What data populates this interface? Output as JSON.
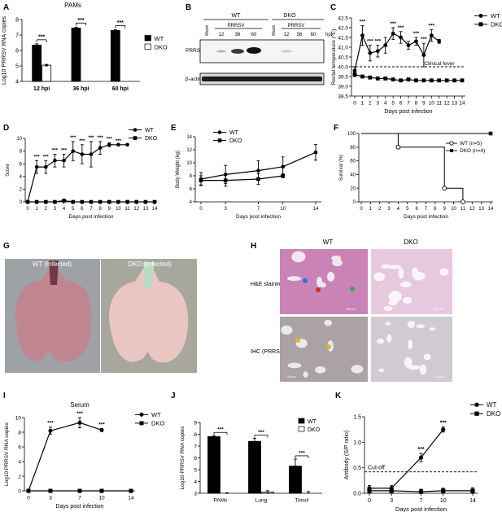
{
  "panel_letters": {
    "a": "A",
    "b": "B",
    "c": "C",
    "d": "D",
    "e": "E",
    "f": "F",
    "g": "G",
    "h": "H",
    "i": "I",
    "j": "J",
    "k": "K"
  },
  "sig": "***",
  "colors": {
    "wt": "#000000",
    "dko_fill": "#ffffff",
    "grid_line": "#000000"
  },
  "chart_data": [
    {
      "id": "A",
      "type": "bar",
      "title": "PAMs",
      "categories": [
        "12 hpi",
        "36 hpi",
        "60 hpi"
      ],
      "ylabel": "Log10 PRRSV RNA copies",
      "ylim": [
        4,
        8
      ],
      "yticks": [
        4,
        5,
        6,
        7,
        8
      ],
      "series": [
        {
          "name": "WT",
          "values": [
            6.35,
            7.45,
            7.3
          ],
          "err": [
            0.08,
            0.06,
            0.04
          ]
        },
        {
          "name": "DKO",
          "values": [
            5.05,
            null,
            null
          ],
          "err": [
            0.05,
            null,
            null
          ]
        }
      ],
      "significance": [
        "***",
        "***",
        "***"
      ],
      "legend": "top-right"
    },
    {
      "id": "C",
      "type": "line",
      "x": [
        0,
        1,
        2,
        3,
        4,
        5,
        6,
        7,
        8,
        9,
        10,
        11,
        12,
        13,
        14
      ],
      "xticks": [
        0,
        1,
        2,
        3,
        4,
        5,
        6,
        7,
        8,
        9,
        10,
        11,
        12,
        13,
        14
      ],
      "xlabel": "Days post infection",
      "ylabel": "Rectal temperature (℃)",
      "ylim": [
        38.5,
        42.5
      ],
      "yticks": [
        38.5,
        39.0,
        39.5,
        40.0,
        40.5,
        41.0,
        41.5,
        42.0,
        42.5
      ],
      "ytick_labels": [
        "38.5",
        "39.0",
        "39.5",
        "40.0",
        "40.5",
        "41.0",
        "41.5",
        "42.0",
        "42.5"
      ],
      "series": [
        {
          "name": "WT",
          "x": [
            0,
            1,
            2,
            3,
            4,
            5,
            6,
            7,
            8,
            9,
            10,
            11
          ],
          "values": [
            39.8,
            41.6,
            40.7,
            40.8,
            41.1,
            41.7,
            41.5,
            41.1,
            41.3,
            40.6,
            41.6,
            41.3
          ],
          "err": [
            0.2,
            0.5,
            0.4,
            0.3,
            0.4,
            0.3,
            0.3,
            0.2,
            0.2,
            0.6,
            0.3,
            0.1
          ]
        },
        {
          "name": "DKO",
          "x": [
            0,
            1,
            2,
            3,
            4,
            5,
            6,
            7,
            8,
            9,
            10,
            11,
            12,
            13,
            14
          ],
          "values": [
            39.6,
            39.5,
            39.45,
            39.4,
            39.4,
            39.35,
            39.3,
            39.35,
            39.3,
            39.3,
            39.3,
            39.3,
            39.3,
            39.3,
            39.3
          ],
          "err": [
            0.1,
            0.05,
            0.05,
            0.05,
            0.05,
            0.05,
            0.05,
            0.05,
            0.05,
            0.05,
            0.05,
            0.05,
            0.05,
            0.05,
            0.05
          ]
        }
      ],
      "reference_line": {
        "y": 40.0,
        "label": "Clinical fever"
      },
      "sig_x": [
        1,
        2,
        3,
        5,
        6,
        8,
        9,
        10
      ],
      "legend": "top-right"
    },
    {
      "id": "D",
      "type": "line",
      "x": [
        0,
        1,
        2,
        3,
        4,
        5,
        6,
        7,
        8,
        9,
        10,
        11,
        12,
        13,
        14
      ],
      "xticks": [
        0,
        1,
        2,
        3,
        4,
        5,
        6,
        7,
        8,
        9,
        10,
        11,
        12,
        13,
        14
      ],
      "xlabel": "Days post infection",
      "ylabel": "Score",
      "ylim": [
        0,
        10
      ],
      "yticks": [
        0,
        2,
        4,
        6,
        8,
        10
      ],
      "series": [
        {
          "name": "WT",
          "x": [
            0,
            1,
            2,
            3,
            4,
            5,
            6,
            7,
            8,
            9,
            10,
            11
          ],
          "values": [
            0,
            5.5,
            5.5,
            6.5,
            6.5,
            8,
            7.5,
            7.5,
            8.5,
            9,
            9,
            9
          ],
          "err": [
            0,
            1,
            1,
            1,
            1,
            1.5,
            1.5,
            2,
            1,
            0.3,
            0,
            0
          ]
        },
        {
          "name": "DKO",
          "x": [
            0,
            1,
            2,
            3,
            4,
            5,
            6,
            7,
            8,
            9,
            10,
            11,
            12,
            13,
            14
          ],
          "values": [
            0,
            0,
            0,
            0,
            0.2,
            0,
            0,
            0,
            0,
            0,
            0,
            0,
            0,
            0,
            0
          ],
          "err": [
            0,
            0,
            0,
            0,
            0.2,
            0,
            0,
            0,
            0,
            0,
            0,
            0,
            0,
            0,
            0
          ]
        }
      ],
      "sig_x": [
        1,
        2,
        3,
        4,
        5,
        6,
        7,
        8,
        9,
        10
      ],
      "legend": "top-right"
    },
    {
      "id": "E",
      "type": "line",
      "xticks": [
        0,
        3,
        7,
        10,
        14
      ],
      "xlabel": "Days post infection",
      "ylabel": "Body Weight (kg)",
      "ylim": [
        4,
        14
      ],
      "yticks": [
        4,
        6,
        8,
        10,
        12,
        14
      ],
      "series": [
        {
          "name": "WT",
          "x": [
            0,
            3,
            7,
            10,
            14
          ],
          "values": [
            7.5,
            8.2,
            8.8,
            9.4,
            11.6
          ],
          "err": [
            1.0,
            1.4,
            1.5,
            1.5,
            1.2
          ]
        },
        {
          "name": "DKO",
          "x": [
            0,
            3,
            7,
            10
          ],
          "values": [
            7.3,
            7.3,
            7.5,
            8.0
          ],
          "err": [
            0.7,
            0.9,
            0.8,
            0.3
          ]
        }
      ],
      "legend": "top-left"
    },
    {
      "id": "F",
      "type": "line",
      "x": [
        0,
        1,
        2,
        3,
        4,
        5,
        6,
        7,
        8,
        9,
        10,
        11,
        12,
        13,
        14
      ],
      "xticks": [
        0,
        1,
        2,
        3,
        4,
        5,
        6,
        7,
        8,
        9,
        10,
        11,
        12,
        13,
        14
      ],
      "xlabel": "Days post infection",
      "ylabel": "Survival (%)",
      "ylim": [
        0,
        100
      ],
      "yticks": [
        0,
        20,
        40,
        60,
        80,
        100
      ],
      "series": [
        {
          "name": "WT (n=5)",
          "steps": [
            [
              0,
              100
            ],
            [
              4,
              100
            ],
            [
              4,
              80
            ],
            [
              9,
              80
            ],
            [
              9,
              20
            ],
            [
              11,
              20
            ],
            [
              11,
              0
            ]
          ],
          "markers": [
            [
              4,
              80
            ],
            [
              9,
              20
            ],
            [
              11,
              0
            ]
          ]
        },
        {
          "name": "DKO (n=4)",
          "steps": [
            [
              0,
              100
            ],
            [
              14,
              100
            ]
          ],
          "markers": [
            [
              14,
              100
            ]
          ]
        }
      ],
      "legend": "right"
    },
    {
      "id": "I",
      "type": "line",
      "title": "Serum",
      "xticks": [
        0,
        3,
        7,
        10,
        14
      ],
      "xlabel": "Days post infection",
      "ylabel": "Log10 PRRSV RNA copies",
      "ylim": [
        0,
        10
      ],
      "yticks": [
        0,
        2,
        4,
        6,
        8,
        10
      ],
      "series": [
        {
          "name": "WT",
          "x": [
            0,
            3,
            7,
            10
          ],
          "values": [
            0,
            8.2,
            9.3,
            8.3
          ],
          "err": [
            0,
            0.5,
            0.7,
            0.2
          ]
        },
        {
          "name": "DKO",
          "x": [
            0,
            3,
            7,
            10,
            14
          ],
          "values": [
            0,
            0,
            0,
            0,
            0
          ],
          "err": [
            0,
            0,
            0,
            0,
            0
          ]
        }
      ],
      "sig_x": [
        3,
        7,
        10
      ],
      "legend": "top-right"
    },
    {
      "id": "J",
      "type": "bar",
      "categories": [
        "PAMs",
        "Lung",
        "Tonsil"
      ],
      "ylabel": "Log10 PRRSV RNA copies",
      "ylim": [
        3,
        9
      ],
      "yticks": [
        3,
        4,
        5,
        6,
        7,
        8,
        9
      ],
      "series": [
        {
          "name": "WT",
          "values": [
            7.8,
            7.4,
            5.3
          ],
          "err": [
            0.08,
            0.25,
            0.6
          ]
        },
        {
          "name": "DKO",
          "values": [
            2.7,
            3.1,
            2.9
          ],
          "err": [
            0.35,
            0.12,
            0.25
          ]
        }
      ],
      "significance": [
        "***",
        "***",
        "***"
      ],
      "legend": "top-right"
    },
    {
      "id": "K",
      "type": "line",
      "xticks": [
        0,
        3,
        7,
        10,
        14
      ],
      "xlabel": "Days post infection",
      "ylabel": "Antibody (S/P ratio)",
      "ylim": [
        0,
        1.5
      ],
      "yticks": [
        0.0,
        0.5,
        1.0,
        1.5
      ],
      "ytick_labels": [
        "0.0",
        "0.5",
        "1.0",
        "1.5"
      ],
      "series": [
        {
          "name": "WT",
          "x": [
            0,
            3,
            7,
            10
          ],
          "values": [
            0.1,
            0.1,
            0.7,
            1.25
          ],
          "err": [
            0.05,
            0.05,
            0.08,
            0.05
          ]
        },
        {
          "name": "DKO",
          "x": [
            0,
            3,
            7,
            10,
            14
          ],
          "values": [
            0.05,
            0.05,
            0.03,
            0.05,
            0.05
          ],
          "err": [
            0.05,
            0.05,
            0.05,
            0.05,
            0.06
          ]
        }
      ],
      "reference_line": {
        "y": 0.42,
        "label": "Cut-off"
      },
      "sig_x": [
        7,
        10
      ],
      "legend": "top-right"
    }
  ],
  "blot": {
    "group_wt": "WT",
    "group_dko": "DKO",
    "prrsv": "PRRSV",
    "mock": "Mock",
    "timepoints": [
      "12",
      "36",
      "60"
    ],
    "unit": "hpi",
    "rows": [
      "PRRSV-N",
      "β-actin"
    ]
  },
  "photo": {
    "wt_caption": "WT (Infected)",
    "dko_caption": "DKO (Infected)"
  },
  "histo": {
    "col_wt": "WT",
    "col_dko": "DKO",
    "rows": [
      "H&E staining",
      "IHC (PRRSV)"
    ],
    "scale": "100 μm"
  }
}
